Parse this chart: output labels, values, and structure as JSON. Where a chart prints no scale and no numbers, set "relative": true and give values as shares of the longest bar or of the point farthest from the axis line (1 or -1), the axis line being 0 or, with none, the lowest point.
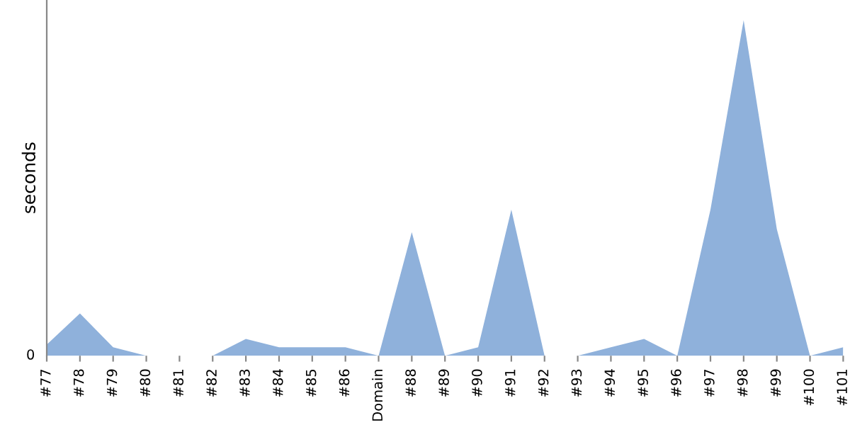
{
  "chart_data": {
    "type": "area",
    "ylabel": "seconds",
    "relative": true,
    "annotations": [
      "0"
    ],
    "categories": [
      "#77",
      "#78",
      "#79",
      "#80",
      "#81",
      "#82",
      "#83",
      "#84",
      "#85",
      "#86",
      "Domain",
      "#88",
      "#89",
      "#90",
      "#91",
      "#92",
      "#93",
      "#94",
      "#95",
      "#96",
      "#97",
      "#98",
      "#99",
      "#100",
      "#101"
    ],
    "series": [
      {
        "color": "#8fb1db",
        "values": [
          0.033,
          0.126,
          0.025,
          0,
          0,
          0,
          0.05,
          0.025,
          0.025,
          0.025,
          0,
          0.368,
          0,
          0.025,
          0.435,
          0,
          0,
          0.025,
          0.05,
          0,
          0.435,
          1,
          0.377,
          0,
          0.025
        ]
      }
    ],
    "legend": false
  }
}
